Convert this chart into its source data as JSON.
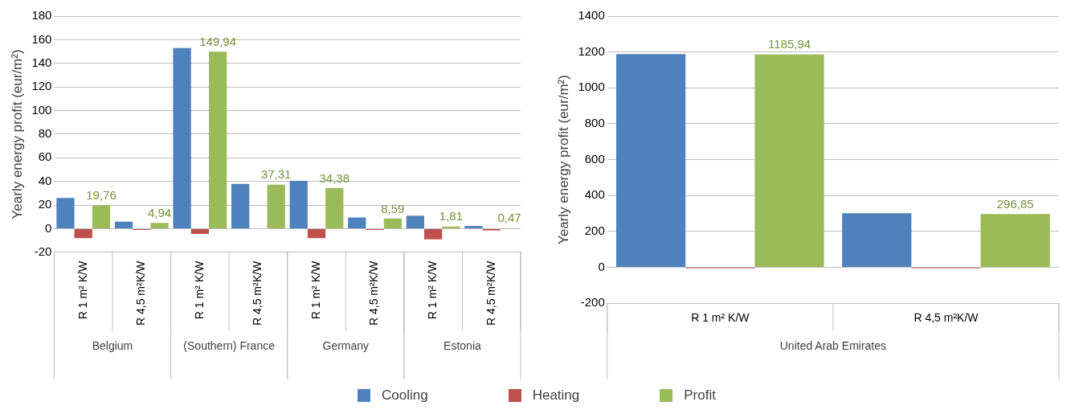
{
  "chart_data": [
    {
      "type": "bar",
      "ylabel": "Yearly energy profit (eur/m²)",
      "categories": [
        "R 1 m² K/W",
        "R 4,5 m²K/W",
        "R 1 m² K/W",
        "R 4,5 m²K/W",
        "R 1 m² K/W",
        "R 4,5 m²K/W",
        "R 1 m² K/W",
        "R 4,5 m²K/W"
      ],
      "series": [
        {
          "name": "Cooling",
          "color": "#4f81bd",
          "values": [
            26,
            6,
            153,
            38,
            40.5,
            9.5,
            11,
            2.3
          ]
        },
        {
          "name": "Heating",
          "color": "#c0504d",
          "values": [
            -8,
            -1,
            -4.4,
            null,
            -8,
            -1,
            -9,
            -1.5
          ]
        },
        {
          "name": "Profit",
          "color": "#9bbb59",
          "values": [
            19.76,
            4.94,
            149.94,
            37.31,
            34.38,
            8.59,
            1.81,
            0.47
          ],
          "value_labels": [
            "19,76",
            "4,94",
            "149,94",
            "37,31",
            "34,38",
            "8,59",
            "1,81",
            "0,47"
          ]
        }
      ],
      "annotations": [
        "Belgium",
        "(Southern) France",
        "Germany",
        "Estonia"
      ],
      "ylim": [
        -20,
        180
      ],
      "yticks": [
        -20,
        0,
        20,
        40,
        60,
        80,
        100,
        120,
        140,
        160,
        180
      ],
      "grid": "y",
      "legend": "bottom"
    },
    {
      "type": "bar",
      "ylabel": "Yearly energy profit (eur/m²)",
      "categories": [
        "R 1 m² K/W",
        "R 4,5 m²K/W"
      ],
      "series": [
        {
          "name": "Cooling",
          "color": "#4f81bd",
          "values": [
            1188,
            301
          ]
        },
        {
          "name": "Heating",
          "color": "#c0504d",
          "values": [
            -5,
            -5
          ]
        },
        {
          "name": "Profit",
          "color": "#9bbb59",
          "values": [
            1185.94,
            296.85
          ],
          "value_labels": [
            "1185,94",
            "296,85"
          ]
        }
      ],
      "annotations": [
        "United Arab Emirates"
      ],
      "ylim": [
        -200,
        1400
      ],
      "yticks": [
        -200,
        0,
        200,
        400,
        600,
        800,
        1000,
        1200,
        1400
      ],
      "grid": "y",
      "legend": "bottom"
    }
  ]
}
